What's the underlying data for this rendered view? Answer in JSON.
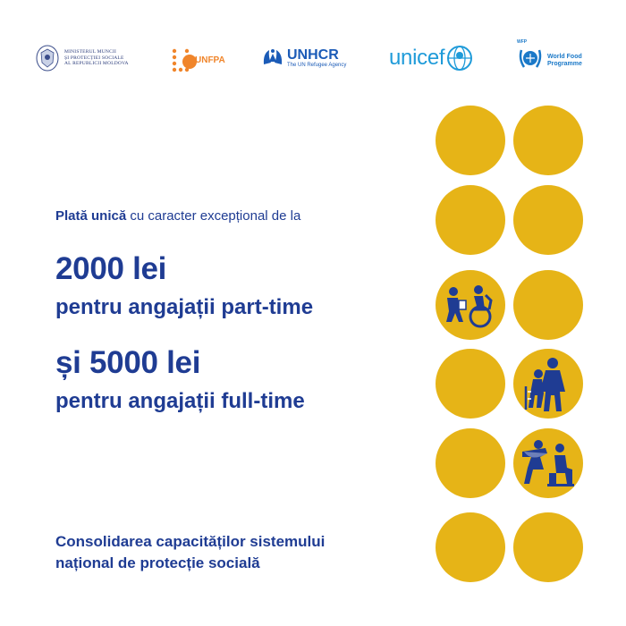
{
  "logos": {
    "ministry": {
      "lines": [
        "MINISTERUL MUNCII",
        "ȘI PROTECȚIEI SOCIALE",
        "AL REPUBLICII MOLDOVA"
      ],
      "icon": "coat-of-arms-icon"
    },
    "unfpa": {
      "label": "UNFPA",
      "icon": "unfpa-dots-icon"
    },
    "unhcr": {
      "label": "UNHCR",
      "tagline": "The UN Refugee Agency",
      "icon": "unhcr-hands-icon"
    },
    "unicef": {
      "label": "unicef",
      "icon": "unicef-globe-icon"
    },
    "wfp": {
      "abbr": "WFP",
      "lines": [
        "World Food",
        "Programme"
      ],
      "icon": "wfp-wreath-icon"
    }
  },
  "content": {
    "intro_bold": "Plată unică",
    "intro_rest": " cu caracter excepțional de la",
    "amount1": "2000 lei",
    "target1": "pentru angajații part-time",
    "amount2": "și 5000 lei",
    "target2": "pentru angajații full-time",
    "footer_line1": "Consolidarea capacităților sistemului",
    "footer_line2": "național de protecție socială"
  },
  "colors": {
    "circle": "#e6b417",
    "text": "#1f3c93",
    "icon_blue": "#1f3c93"
  },
  "illustrations": [
    "caregiver-wheelchair-icon",
    "caregiver-elderly-icon",
    "social-worker-icon"
  ]
}
